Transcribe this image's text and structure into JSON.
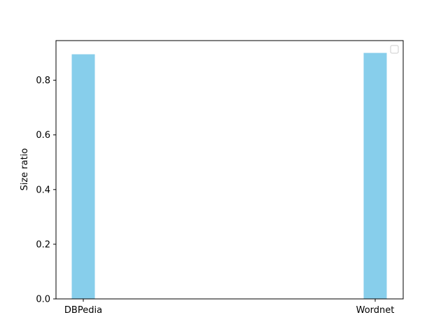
{
  "chart_data": {
    "type": "bar",
    "categories": [
      "DBPedia",
      "Wordnet"
    ],
    "values": [
      0.895,
      0.9
    ],
    "ylabel": "Size ratio",
    "xlabel": "",
    "title": "",
    "ylim": [
      0,
      0.945
    ],
    "yticks": [
      "0.0",
      "0.2",
      "0.4",
      "0.6",
      "0.8"
    ],
    "bar_color": "#87CEEB",
    "grid": false,
    "legend_placement": "top-right",
    "legend_entries": []
  }
}
